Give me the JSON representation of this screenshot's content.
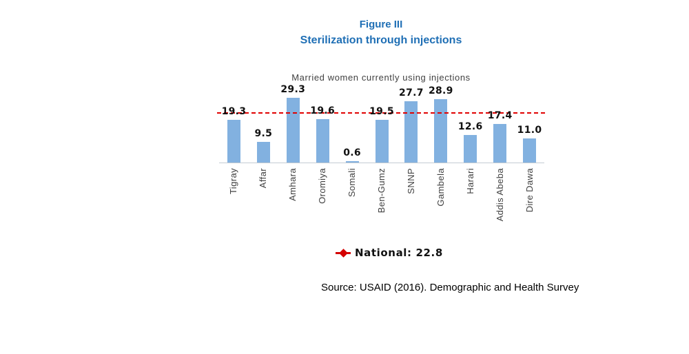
{
  "figure": {
    "label": "Figure III",
    "title": "Sterilization through injections"
  },
  "chart_data": {
    "type": "bar",
    "title": "Married women currently using injections",
    "categories": [
      "Tigray",
      "Affar",
      "Amhara",
      "Oromiya",
      "Somali",
      "Ben-Gumz",
      "SNNP",
      "Gambela",
      "Harari",
      "Addis Abeba",
      "Dire Dawa"
    ],
    "values": [
      19.3,
      9.5,
      29.3,
      19.6,
      0.6,
      19.5,
      27.7,
      28.9,
      12.6,
      17.4,
      11.0
    ],
    "ylim": [
      0,
      30
    ],
    "grid": false,
    "data_labels": "above bars, one decimal",
    "bar_color": "#82B1E0",
    "reference_line": {
      "label": "National",
      "value": 22.8,
      "color": "#E00000",
      "style": "dashed"
    },
    "legend": {
      "position": "bottom-center",
      "text": "National: 22.8",
      "marker": "red-diamond-on-line"
    }
  },
  "source": "Source: USAID (2016). Demographic and Health Survey",
  "colors": {
    "title_blue": "#1F6FB5",
    "bar_blue": "#82B1E0",
    "reference_red": "#E00000",
    "axis_gray": "#C3CBD2",
    "category_label_gray": "#3F3F3F",
    "chart_title_gray": "#404040"
  }
}
